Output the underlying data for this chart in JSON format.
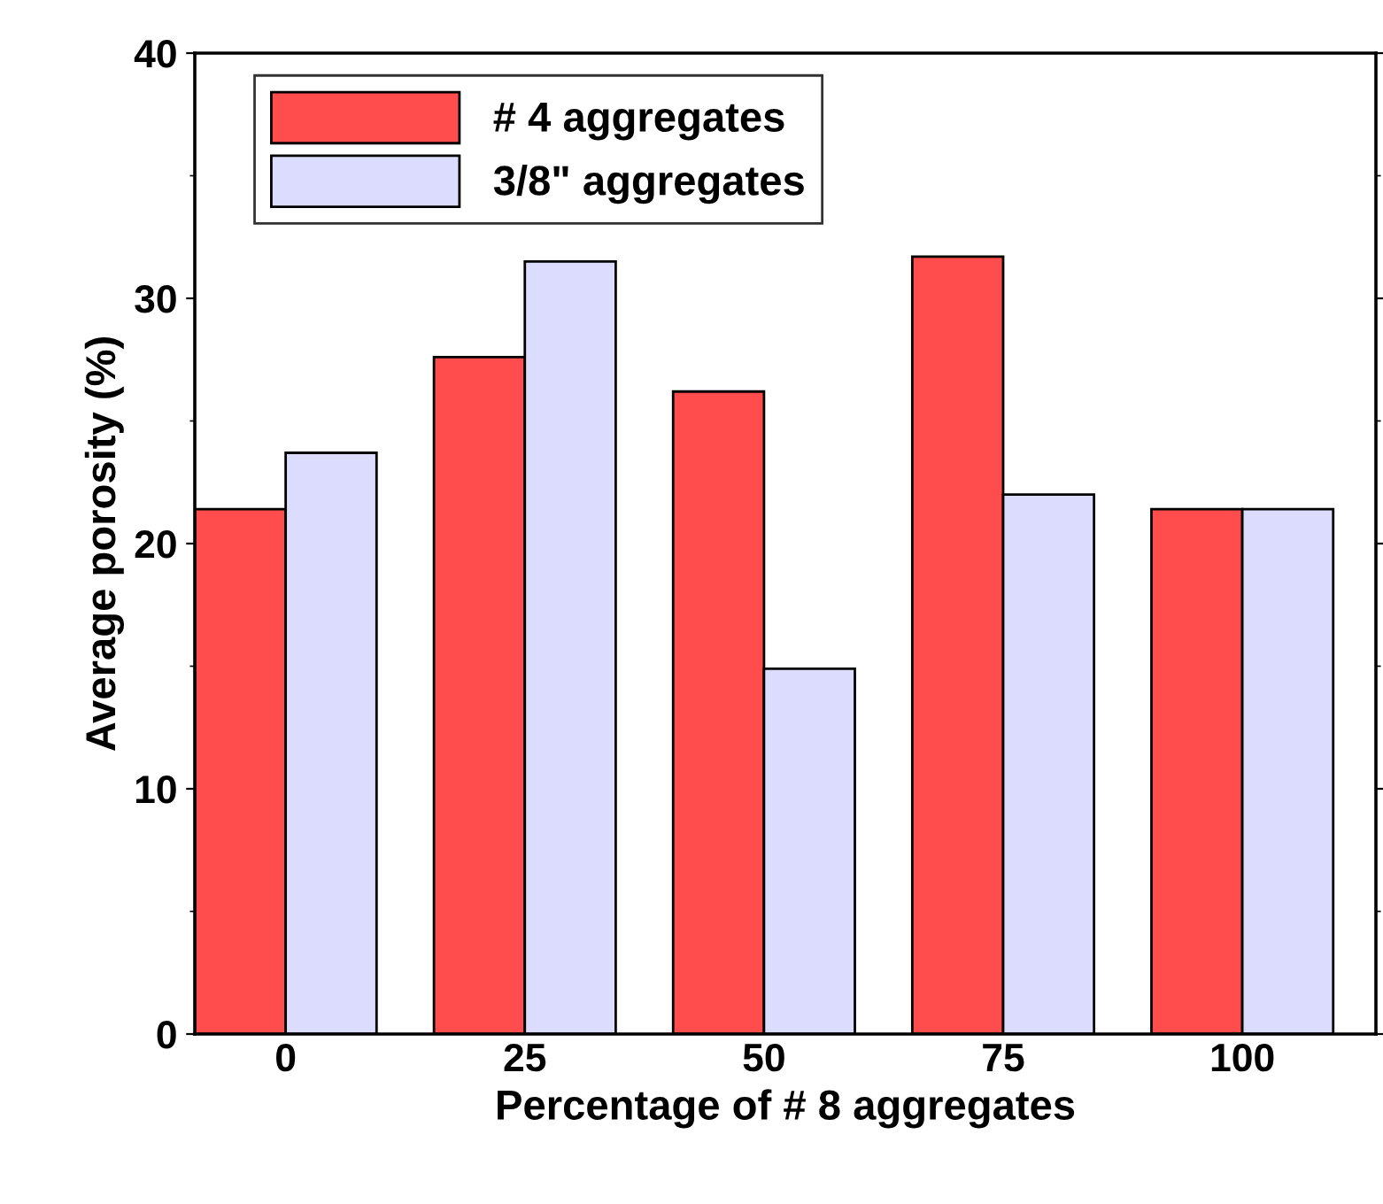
{
  "chart_data": {
    "type": "bar",
    "xlabel": "Percentage of # 8 aggregates",
    "ylabel": "Average porosity (%)",
    "categories": [
      "0",
      "25",
      "50",
      "75",
      "100"
    ],
    "series": [
      {
        "name": "# 4 aggregates",
        "color": "#ff4c4c",
        "values": [
          21.4,
          27.6,
          26.2,
          31.7,
          21.4
        ]
      },
      {
        "name": "3/8\" aggregates",
        "color": "#dcdcff",
        "values": [
          23.7,
          31.5,
          14.9,
          22.0,
          21.4
        ]
      }
    ],
    "ylim": [
      0,
      40
    ],
    "yticks": [
      0,
      10,
      20,
      30,
      40
    ],
    "legend": "top left",
    "grid": false
  }
}
